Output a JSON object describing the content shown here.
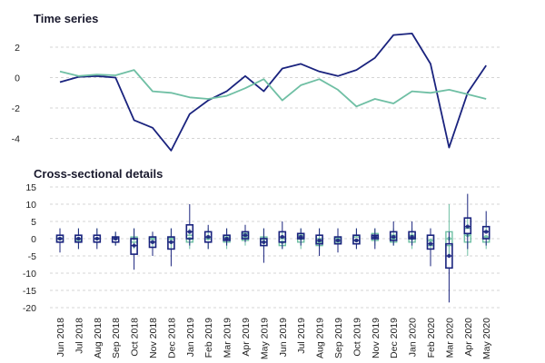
{
  "colors": {
    "series_dark": "#1a237e",
    "series_light": "#6fbfa4",
    "grid": "#d4d4d4",
    "text": "#222222"
  },
  "chart_data": [
    {
      "type": "line",
      "title": "Time series",
      "xlabel": "",
      "ylabel": "",
      "ylim": [
        -5,
        3
      ],
      "yticks": [
        -4,
        -2,
        0,
        2
      ],
      "grid": true,
      "x": [
        "Jun 2018",
        "Jul 2018",
        "Aug 2018",
        "Sep 2018",
        "Oct 2018",
        "Nov 2018",
        "Dec 2018",
        "Jan 2019",
        "Feb 2019",
        "Mar 2019",
        "Apr 2019",
        "May 2019",
        "Jun 2019",
        "Jul 2019",
        "Aug 2019",
        "Sep 2019",
        "Oct 2019",
        "Nov 2019",
        "Dec 2019",
        "Jan 2020",
        "Feb 2020",
        "Mar 2020",
        "Apr 2020",
        "May 2020"
      ],
      "series": [
        {
          "color": "#1a237e",
          "values": [
            -0.3,
            0.05,
            0.1,
            0.0,
            -2.8,
            -3.3,
            -4.8,
            -2.4,
            -1.5,
            -0.9,
            0.1,
            -0.9,
            0.6,
            0.9,
            0.4,
            0.1,
            0.5,
            1.3,
            2.8,
            2.9,
            0.9,
            -4.6,
            -1.0,
            0.8
          ]
        },
        {
          "color": "#6fbfa4",
          "values": [
            0.4,
            0.1,
            0.2,
            0.15,
            0.5,
            -0.9,
            -1.0,
            -1.3,
            -1.4,
            -1.2,
            -0.7,
            -0.1,
            -1.5,
            -0.5,
            -0.1,
            -0.8,
            -1.9,
            -1.4,
            -1.7,
            -0.9,
            -1.0,
            -0.8,
            -1.1,
            -1.4
          ]
        }
      ]
    },
    {
      "type": "box",
      "title": "Cross-sectional details",
      "xlabel": "",
      "ylabel": "",
      "ylim": [
        -20,
        15
      ],
      "yticks": [
        -20,
        -15,
        -10,
        -5,
        0,
        5,
        10,
        15
      ],
      "grid": true,
      "categories": [
        "Jun 2018",
        "Jul 2018",
        "Aug 2018",
        "Sep 2018",
        "Oct 2018",
        "Nov 2018",
        "Dec 2018",
        "Jan 2019",
        "Feb 2019",
        "Mar 2019",
        "Apr 2019",
        "May 2019",
        "Jun 2019",
        "Jul 2019",
        "Aug 2019",
        "Sep 2019",
        "Oct 2019",
        "Nov 2019",
        "Dec 2019",
        "Jan 2020",
        "Feb 2020",
        "Mar 2020",
        "Apr 2020",
        "May 2020"
      ],
      "series": [
        {
          "color": "#1a237e",
          "boxes": [
            [
              -4,
              -1,
              0,
              1,
              3
            ],
            [
              -3,
              -1,
              0,
              1,
              3
            ],
            [
              -3,
              -1,
              0,
              1,
              3
            ],
            [
              -2,
              -1,
              0,
              0.5,
              2
            ],
            [
              -9,
              -4.5,
              -2,
              0,
              3
            ],
            [
              -5,
              -2.5,
              -1,
              0.5,
              2
            ],
            [
              -8,
              -3,
              -1,
              0.5,
              3
            ],
            [
              -2,
              0,
              2,
              4,
              10
            ],
            [
              -3,
              -1,
              0.5,
              2,
              4
            ],
            [
              -2,
              -0.5,
              0,
              1,
              3
            ],
            [
              -1,
              0,
              1,
              2,
              4
            ],
            [
              -7,
              -2,
              -1,
              0,
              3
            ],
            [
              -3,
              -1,
              0.5,
              2,
              5
            ],
            [
              -2,
              0,
              0.5,
              1.5,
              3
            ],
            [
              -5,
              -1.5,
              -0.5,
              1,
              3
            ],
            [
              -4,
              -1.5,
              -0.5,
              0.5,
              3
            ],
            [
              -3,
              -1.5,
              -0.5,
              1,
              3
            ],
            [
              -3,
              0,
              0.5,
              1,
              3
            ],
            [
              -2,
              -0.5,
              0.5,
              2,
              5
            ],
            [
              -2,
              0,
              0.5,
              2,
              5
            ],
            [
              -8,
              -3,
              -1.5,
              1,
              3
            ],
            [
              -18.5,
              -8.5,
              -5,
              -1.5,
              2
            ],
            [
              -3,
              1.5,
              3.5,
              6,
              13
            ],
            [
              -2,
              0,
              2,
              3.5,
              8
            ]
          ]
        },
        {
          "color": "#6fbfa4",
          "boxes": [
            [
              -3,
              -1,
              0,
              1,
              3
            ],
            [
              -3,
              -0.5,
              0,
              1,
              3
            ],
            [
              -2,
              -1,
              0,
              1,
              3
            ],
            [
              -2,
              -1,
              0,
              0.5,
              2
            ],
            [
              -3,
              -1,
              0,
              0.5,
              3
            ],
            [
              -3,
              -1,
              0,
              0.5,
              2
            ],
            [
              -3,
              -1,
              0,
              0.5,
              3
            ],
            [
              -3,
              -1,
              0,
              1,
              3
            ],
            [
              -3,
              -1,
              0,
              0.5,
              3
            ],
            [
              -3,
              -1,
              0,
              0.5,
              3
            ],
            [
              -2,
              -0.5,
              0.5,
              1.5,
              3
            ],
            [
              -3,
              -1,
              0,
              0.5,
              3
            ],
            [
              -3,
              -2,
              -1,
              0,
              2
            ],
            [
              -3,
              -1,
              0,
              1,
              3
            ],
            [
              -3,
              -2,
              -1,
              0,
              3
            ],
            [
              -3,
              -1,
              0,
              0.5,
              3
            ],
            [
              -3,
              -1.5,
              -0.5,
              0.5,
              3
            ],
            [
              -2,
              -0.5,
              0.5,
              1.5,
              3
            ],
            [
              -2,
              -1,
              0,
              1,
              3
            ],
            [
              -3,
              -1,
              0,
              1,
              3
            ],
            [
              -4,
              -2,
              -0.5,
              1,
              3
            ],
            [
              -5,
              -2,
              0,
              2,
              10
            ],
            [
              -5,
              -1,
              1,
              3,
              6
            ],
            [
              -3,
              -1,
              0.5,
              2,
              5
            ]
          ]
        }
      ],
      "medians_dots": true
    }
  ]
}
